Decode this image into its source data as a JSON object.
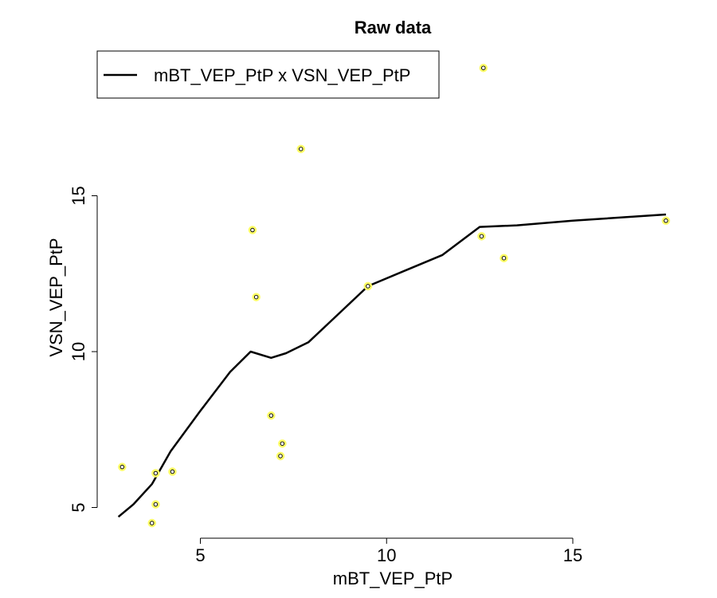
{
  "chart_data": {
    "type": "scatter",
    "title": "Raw data",
    "xlabel": "mBT_VEP_PtP",
    "ylabel": "VSN_VEP_PtP",
    "xlim": [
      2.5,
      18
    ],
    "ylim": [
      4,
      19.5
    ],
    "x_ticks": [
      5,
      10,
      15
    ],
    "y_ticks": [
      5,
      10,
      15
    ],
    "legend": {
      "position": "top-left",
      "entries": [
        {
          "label": "mBT_VEP_PtP x VSN_VEP_PtP",
          "style": "line"
        }
      ]
    },
    "points": {
      "x": [
        2.9,
        3.7,
        3.8,
        3.8,
        4.25,
        6.4,
        6.5,
        6.9,
        7.15,
        7.2,
        7.7,
        9.5,
        12.55,
        12.6,
        13.15,
        17.5
      ],
      "y": [
        6.3,
        4.5,
        5.1,
        6.1,
        6.15,
        13.9,
        11.75,
        7.95,
        6.65,
        7.05,
        16.5,
        12.1,
        13.7,
        19.1,
        13.0,
        14.2
      ]
    },
    "series": [
      {
        "name": "mBT_VEP_PtP x VSN_VEP_PtP",
        "x": [
          2.8,
          3.2,
          3.7,
          4.2,
          5.0,
          5.8,
          6.35,
          6.9,
          7.3,
          7.9,
          8.7,
          9.5,
          10.5,
          11.5,
          12.5,
          13.5,
          15.0,
          17.5
        ],
        "y": [
          4.7,
          5.1,
          5.75,
          6.8,
          8.1,
          9.35,
          10.0,
          9.8,
          9.95,
          10.3,
          11.2,
          12.1,
          12.6,
          13.1,
          14.0,
          14.05,
          14.2,
          14.4
        ]
      }
    ]
  }
}
